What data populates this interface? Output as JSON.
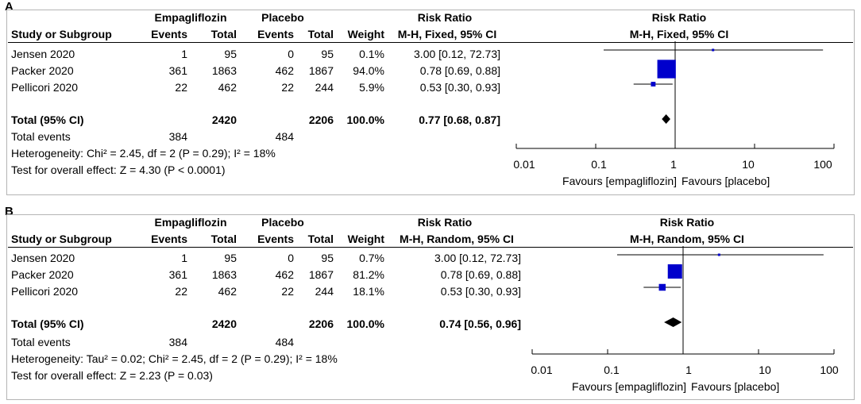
{
  "chart_data": [
    {
      "type": "forest",
      "panel": "A",
      "group_headers": {
        "experimental": "Empagliflozin",
        "control": "Placebo",
        "ratio": "Risk Ratio",
        "plot": "Risk Ratio"
      },
      "columns": {
        "study": "Study or Subgroup",
        "exp_events": "Events",
        "exp_total": "Total",
        "ctrl_events": "Events",
        "ctrl_total": "Total",
        "weight": "Weight",
        "ratio_method": "M-H, Fixed, 95% CI",
        "plot_method": "M-H, Fixed, 95% CI"
      },
      "studies": [
        {
          "name": "Jensen 2020",
          "exp_events": "1",
          "exp_total": "95",
          "ctrl_events": "0",
          "ctrl_total": "95",
          "weight": "0.1%",
          "ci_text": "3.00 [0.12, 72.73]",
          "rr": 3.0,
          "lo": 0.12,
          "hi": 72.73,
          "weight_value": 0.1
        },
        {
          "name": "Packer 2020",
          "exp_events": "361",
          "exp_total": "1863",
          "ctrl_events": "462",
          "ctrl_total": "1867",
          "weight": "94.0%",
          "ci_text": "0.78 [0.69, 0.88]",
          "rr": 0.78,
          "lo": 0.69,
          "hi": 0.88,
          "weight_value": 94.0
        },
        {
          "name": "Pellicori 2020",
          "exp_events": "22",
          "exp_total": "462",
          "ctrl_events": "22",
          "ctrl_total": "244",
          "weight": "5.9%",
          "ci_text": "0.53 [0.30, 0.93]",
          "rr": 0.53,
          "lo": 0.3,
          "hi": 0.93,
          "weight_value": 5.9
        }
      ],
      "total": {
        "label": "Total (95% CI)",
        "exp_total": "2420",
        "ctrl_total": "2206",
        "weight": "100.0%",
        "ci_text": "0.77 [0.68, 0.87]",
        "rr": 0.77,
        "lo": 0.68,
        "hi": 0.87
      },
      "total_events": {
        "label": "Total events",
        "exp": "384",
        "ctrl": "484"
      },
      "heterogeneity": "Heterogeneity: Chi² = 2.45, df = 2 (P = 0.29); I² = 18%",
      "overall_effect": "Test for overall effect: Z = 4.30 (P < 0.0001)",
      "axis": {
        "scale": "log",
        "ticks": [
          0.01,
          0.1,
          1,
          10,
          100
        ],
        "tick_labels": [
          "0.01",
          "0.1",
          "1",
          "10",
          "100"
        ],
        "xlim": [
          0.01,
          100
        ]
      },
      "favours_left": "Favours [empagliflozin]",
      "favours_right": "Favours [placebo]",
      "marker_color": "#0000cc"
    },
    {
      "type": "forest",
      "panel": "B",
      "group_headers": {
        "experimental": "Empagliflozin",
        "control": "Placebo",
        "ratio": "Risk Ratio",
        "plot": "Risk Ratio"
      },
      "columns": {
        "study": "Study or Subgroup",
        "exp_events": "Events",
        "exp_total": "Total",
        "ctrl_events": "Events",
        "ctrl_total": "Total",
        "weight": "Weight",
        "ratio_method": "M-H, Random, 95% CI",
        "plot_method": "M-H, Random, 95% CI"
      },
      "studies": [
        {
          "name": "Jensen 2020",
          "exp_events": "1",
          "exp_total": "95",
          "ctrl_events": "0",
          "ctrl_total": "95",
          "weight": "0.7%",
          "ci_text": "3.00 [0.12, 72.73]",
          "rr": 3.0,
          "lo": 0.12,
          "hi": 72.73,
          "weight_value": 0.7
        },
        {
          "name": "Packer 2020",
          "exp_events": "361",
          "exp_total": "1863",
          "ctrl_events": "462",
          "ctrl_total": "1867",
          "weight": "81.2%",
          "ci_text": "0.78 [0.69, 0.88]",
          "rr": 0.78,
          "lo": 0.69,
          "hi": 0.88,
          "weight_value": 81.2
        },
        {
          "name": "Pellicori 2020",
          "exp_events": "22",
          "exp_total": "462",
          "ctrl_events": "22",
          "ctrl_total": "244",
          "weight": "18.1%",
          "ci_text": "0.53 [0.30, 0.93]",
          "rr": 0.53,
          "lo": 0.3,
          "hi": 0.93,
          "weight_value": 18.1
        }
      ],
      "total": {
        "label": "Total (95% CI)",
        "exp_total": "2420",
        "ctrl_total": "2206",
        "weight": "100.0%",
        "ci_text": "0.74 [0.56, 0.96]",
        "rr": 0.74,
        "lo": 0.56,
        "hi": 0.96
      },
      "total_events": {
        "label": "Total events",
        "exp": "384",
        "ctrl": "484"
      },
      "heterogeneity": "Heterogeneity: Tau² = 0.02; Chi² = 2.45, df = 2 (P = 0.29); I² = 18%",
      "overall_effect": "Test for overall effect: Z = 2.23 (P = 0.03)",
      "axis": {
        "scale": "log",
        "ticks": [
          0.01,
          0.1,
          1,
          10,
          100
        ],
        "tick_labels": [
          "0.01",
          "0.1",
          "1",
          "10",
          "100"
        ],
        "xlim": [
          0.01,
          100
        ]
      },
      "favours_left": "Favours [empagliflozin]",
      "favours_right": "Favours [placebo]",
      "marker_color": "#0000cc"
    }
  ]
}
